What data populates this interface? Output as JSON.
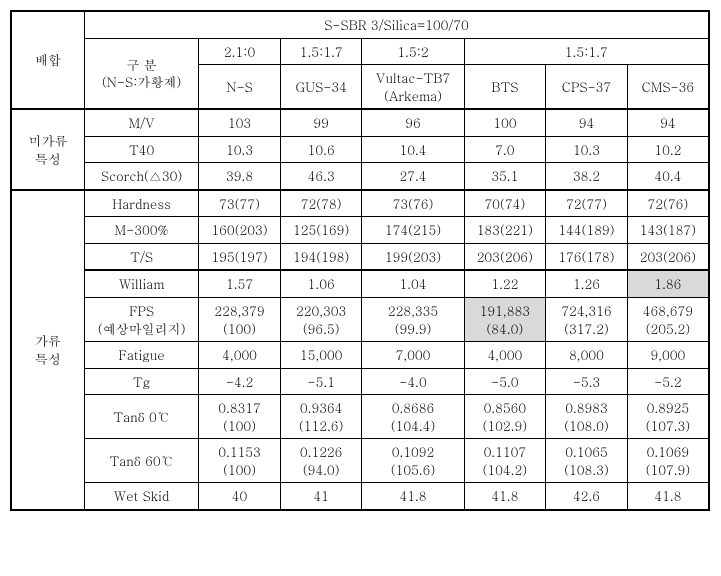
{
  "header": {
    "title": "S-SBR 3/Silica=100/70",
    "left_label": "배합",
    "section_label_top": "구 분",
    "section_label_bottom": "(N-S:가황제)",
    "ratio_210": "2.1:0",
    "ratio_1517_a": "1.5:1.7",
    "ratio_152": "1.5:2",
    "ratio_1517_b": "1.5:1.7",
    "ns": "N-S",
    "gus34": "GUS-34",
    "vultac_top": "Vultac-TB7",
    "vultac_bottom": "(Arkema)",
    "bts": "BTS",
    "cps37": "CPS-37",
    "cms36": "CMS-36"
  },
  "group1": {
    "label_top": "미가류",
    "label_bottom": "특성",
    "r1": {
      "name": "M/V",
      "c": [
        "103",
        "99",
        "96",
        "100",
        "94",
        "94"
      ]
    },
    "r2": {
      "name": "T40",
      "c": [
        "10.3",
        "10.6",
        "10.4",
        "7.0",
        "10.3",
        "10.2"
      ]
    },
    "r3": {
      "name": "Scorch(△30)",
      "c": [
        "39.8",
        "46.3",
        "27.4",
        "35.1",
        "38.2",
        "40.4"
      ]
    }
  },
  "group2": {
    "label_top": "가류",
    "label_bottom": "특성",
    "r1": {
      "name": "Hardness",
      "c": [
        "73(77)",
        "72(78)",
        "73(76)",
        "70(74)",
        "72(77)",
        "72(76)"
      ]
    },
    "r2": {
      "name": "M-300%",
      "c": [
        "160(203)",
        "125(169)",
        "174(215)",
        "183(221)",
        "144(189)",
        "143(187)"
      ]
    },
    "r3": {
      "name": "T/S",
      "c": [
        "195(197)",
        "194(198)",
        "199(203)",
        "203(206)",
        "176(178)",
        "203(206)"
      ]
    },
    "r4": {
      "name": "William",
      "c": [
        "1.57",
        "1.06",
        "1.04",
        "1.22",
        "1.26",
        "1.86"
      ]
    },
    "r5": {
      "name_top": "FPS",
      "name_bottom": "(예상마일리지)",
      "top": [
        "228,379",
        "220,303",
        "228,335",
        "191,883",
        "724,316",
        "468,679"
      ],
      "bot": [
        "(100)",
        "(96.5)",
        "(99.9)",
        "(84.0)",
        "(317.2)",
        "(205.2)"
      ]
    },
    "r6": {
      "name": "Fatigue",
      "c": [
        "4,000",
        "15,000",
        "7,000",
        "4,000",
        "8,000",
        "9,000"
      ]
    },
    "r7": {
      "name": "Tg",
      "c": [
        "-4.2",
        "-5.1",
        "-4.0",
        "-5.0",
        "-5.3",
        "-5.2"
      ]
    },
    "r8": {
      "name": "Tanδ 0℃",
      "top": [
        "0.8317",
        "0.9364",
        "0.8686",
        "0.8560",
        "0.8983",
        "0.8925"
      ],
      "bot": [
        "(100)",
        "(112.6)",
        "(104.4)",
        "(102.9)",
        "(108.0)",
        "(107.3)"
      ]
    },
    "r9": {
      "name": "Tanδ 60℃",
      "top": [
        "0.1153",
        "0.1226",
        "0.1092",
        "0.1107",
        "0.1065",
        "0.1069"
      ],
      "bot": [
        "(100)",
        "(94.0)",
        "(105.6)",
        "(104.2)",
        "(108.3)",
        "(107.9)"
      ]
    },
    "r10": {
      "name": "Wet Skid",
      "c": [
        "40",
        "41",
        "41.8",
        "41.8",
        "42.6",
        "41.8"
      ]
    }
  }
}
